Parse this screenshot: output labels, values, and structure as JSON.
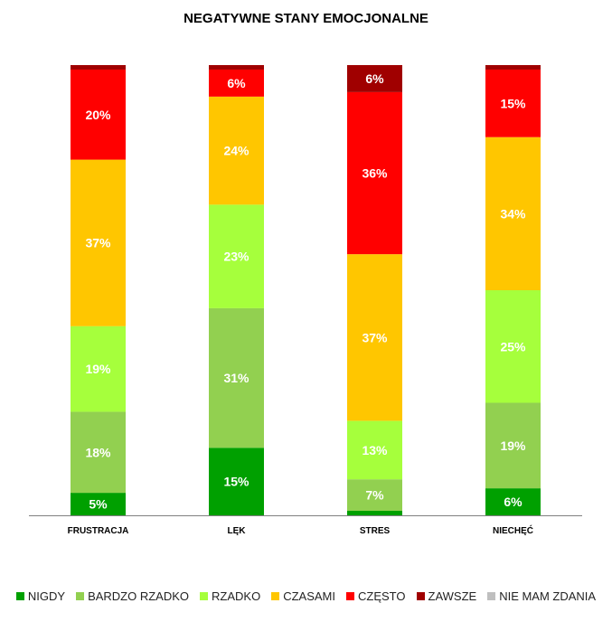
{
  "chart_data": {
    "type": "bar",
    "stacked": true,
    "title": "NEGATYWNE STANY EMOCJONALNE",
    "categories": [
      "FRUSTRACJA",
      "LĘK",
      "STRES",
      "NIECHĘĆ"
    ],
    "series": [
      {
        "name": "NIGDY",
        "color": "#00A000",
        "values": [
          5,
          15,
          1,
          6
        ]
      },
      {
        "name": "BARDZO RZADKO",
        "color": "#92D050",
        "values": [
          18,
          31,
          7,
          19
        ]
      },
      {
        "name": "RZADKO",
        "color": "#A6FF3C",
        "values": [
          19,
          23,
          13,
          25
        ]
      },
      {
        "name": "CZASAMI",
        "color": "#FFC600",
        "values": [
          37,
          24,
          37,
          34
        ]
      },
      {
        "name": "CZĘSTO",
        "color": "#FF0000",
        "values": [
          20,
          6,
          36,
          15
        ]
      },
      {
        "name": "ZAWSZE",
        "color": "#A00000",
        "values": [
          1,
          1,
          6,
          1
        ]
      },
      {
        "name": "NIE MAM ZDANIA",
        "color": "#BFBFBF",
        "values": [
          0,
          0,
          0,
          0
        ]
      }
    ],
    "data_label_min": 5,
    "ylim": [
      0,
      100
    ],
    "grid": false,
    "legend_position": "bottom"
  }
}
